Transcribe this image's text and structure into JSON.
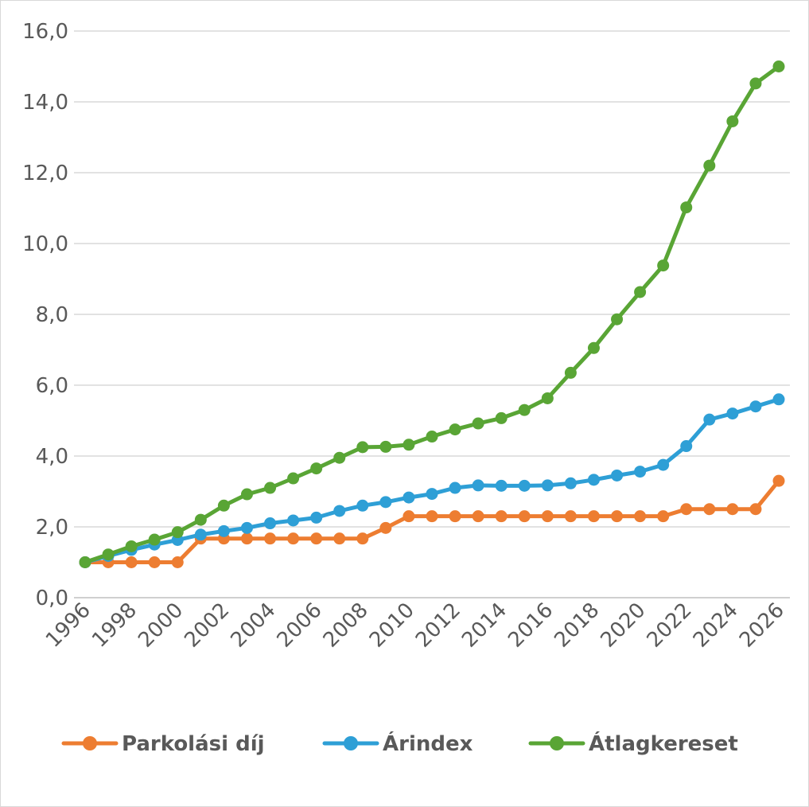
{
  "chart_data": {
    "type": "line",
    "x": [
      1996,
      1997,
      1998,
      1999,
      2000,
      2001,
      2002,
      2003,
      2004,
      2005,
      2006,
      2007,
      2008,
      2009,
      2010,
      2011,
      2012,
      2013,
      2014,
      2015,
      2016,
      2017,
      2018,
      2019,
      2020,
      2021,
      2022,
      2023,
      2024,
      2025,
      2026
    ],
    "x_tick_labels": [
      "1996",
      "1998",
      "2000",
      "2002",
      "2004",
      "2006",
      "2008",
      "2010",
      "2012",
      "2014",
      "2016",
      "2018",
      "2020",
      "2022",
      "2024",
      "2026"
    ],
    "y_tick_labels": [
      "0,0",
      "2,0",
      "4,0",
      "6,0",
      "8,0",
      "10,0",
      "12,0",
      "14,0",
      "16,0"
    ],
    "ylim": [
      0,
      16
    ],
    "grid": true,
    "legend_position": "bottom",
    "series": [
      {
        "name": "Parkolási díj",
        "color": "#ED7D31",
        "values": [
          1.0,
          1.0,
          1.0,
          1.0,
          1.0,
          1.67,
          1.67,
          1.67,
          1.67,
          1.67,
          1.67,
          1.67,
          1.67,
          1.97,
          2.3,
          2.3,
          2.3,
          2.3,
          2.3,
          2.3,
          2.3,
          2.3,
          2.3,
          2.3,
          2.3,
          2.3,
          2.5,
          2.5,
          2.5,
          2.5,
          3.3
        ]
      },
      {
        "name": "Árindex",
        "color": "#2E9FD6",
        "values": [
          1.0,
          1.18,
          1.35,
          1.5,
          1.63,
          1.78,
          1.88,
          1.97,
          2.1,
          2.18,
          2.26,
          2.45,
          2.6,
          2.7,
          2.83,
          2.93,
          3.1,
          3.17,
          3.16,
          3.16,
          3.17,
          3.23,
          3.33,
          3.45,
          3.56,
          3.75,
          4.28,
          5.03,
          5.2,
          5.4,
          5.6
        ]
      },
      {
        "name": "Átlagkereset",
        "color": "#59A535",
        "values": [
          1.0,
          1.22,
          1.45,
          1.64,
          1.85,
          2.2,
          2.6,
          2.92,
          3.1,
          3.37,
          3.65,
          3.95,
          4.25,
          4.26,
          4.32,
          4.55,
          4.75,
          4.92,
          5.07,
          5.3,
          5.63,
          6.35,
          7.05,
          7.86,
          8.63,
          9.38,
          11.02,
          12.2,
          13.45,
          14.52,
          15.0
        ]
      }
    ]
  }
}
